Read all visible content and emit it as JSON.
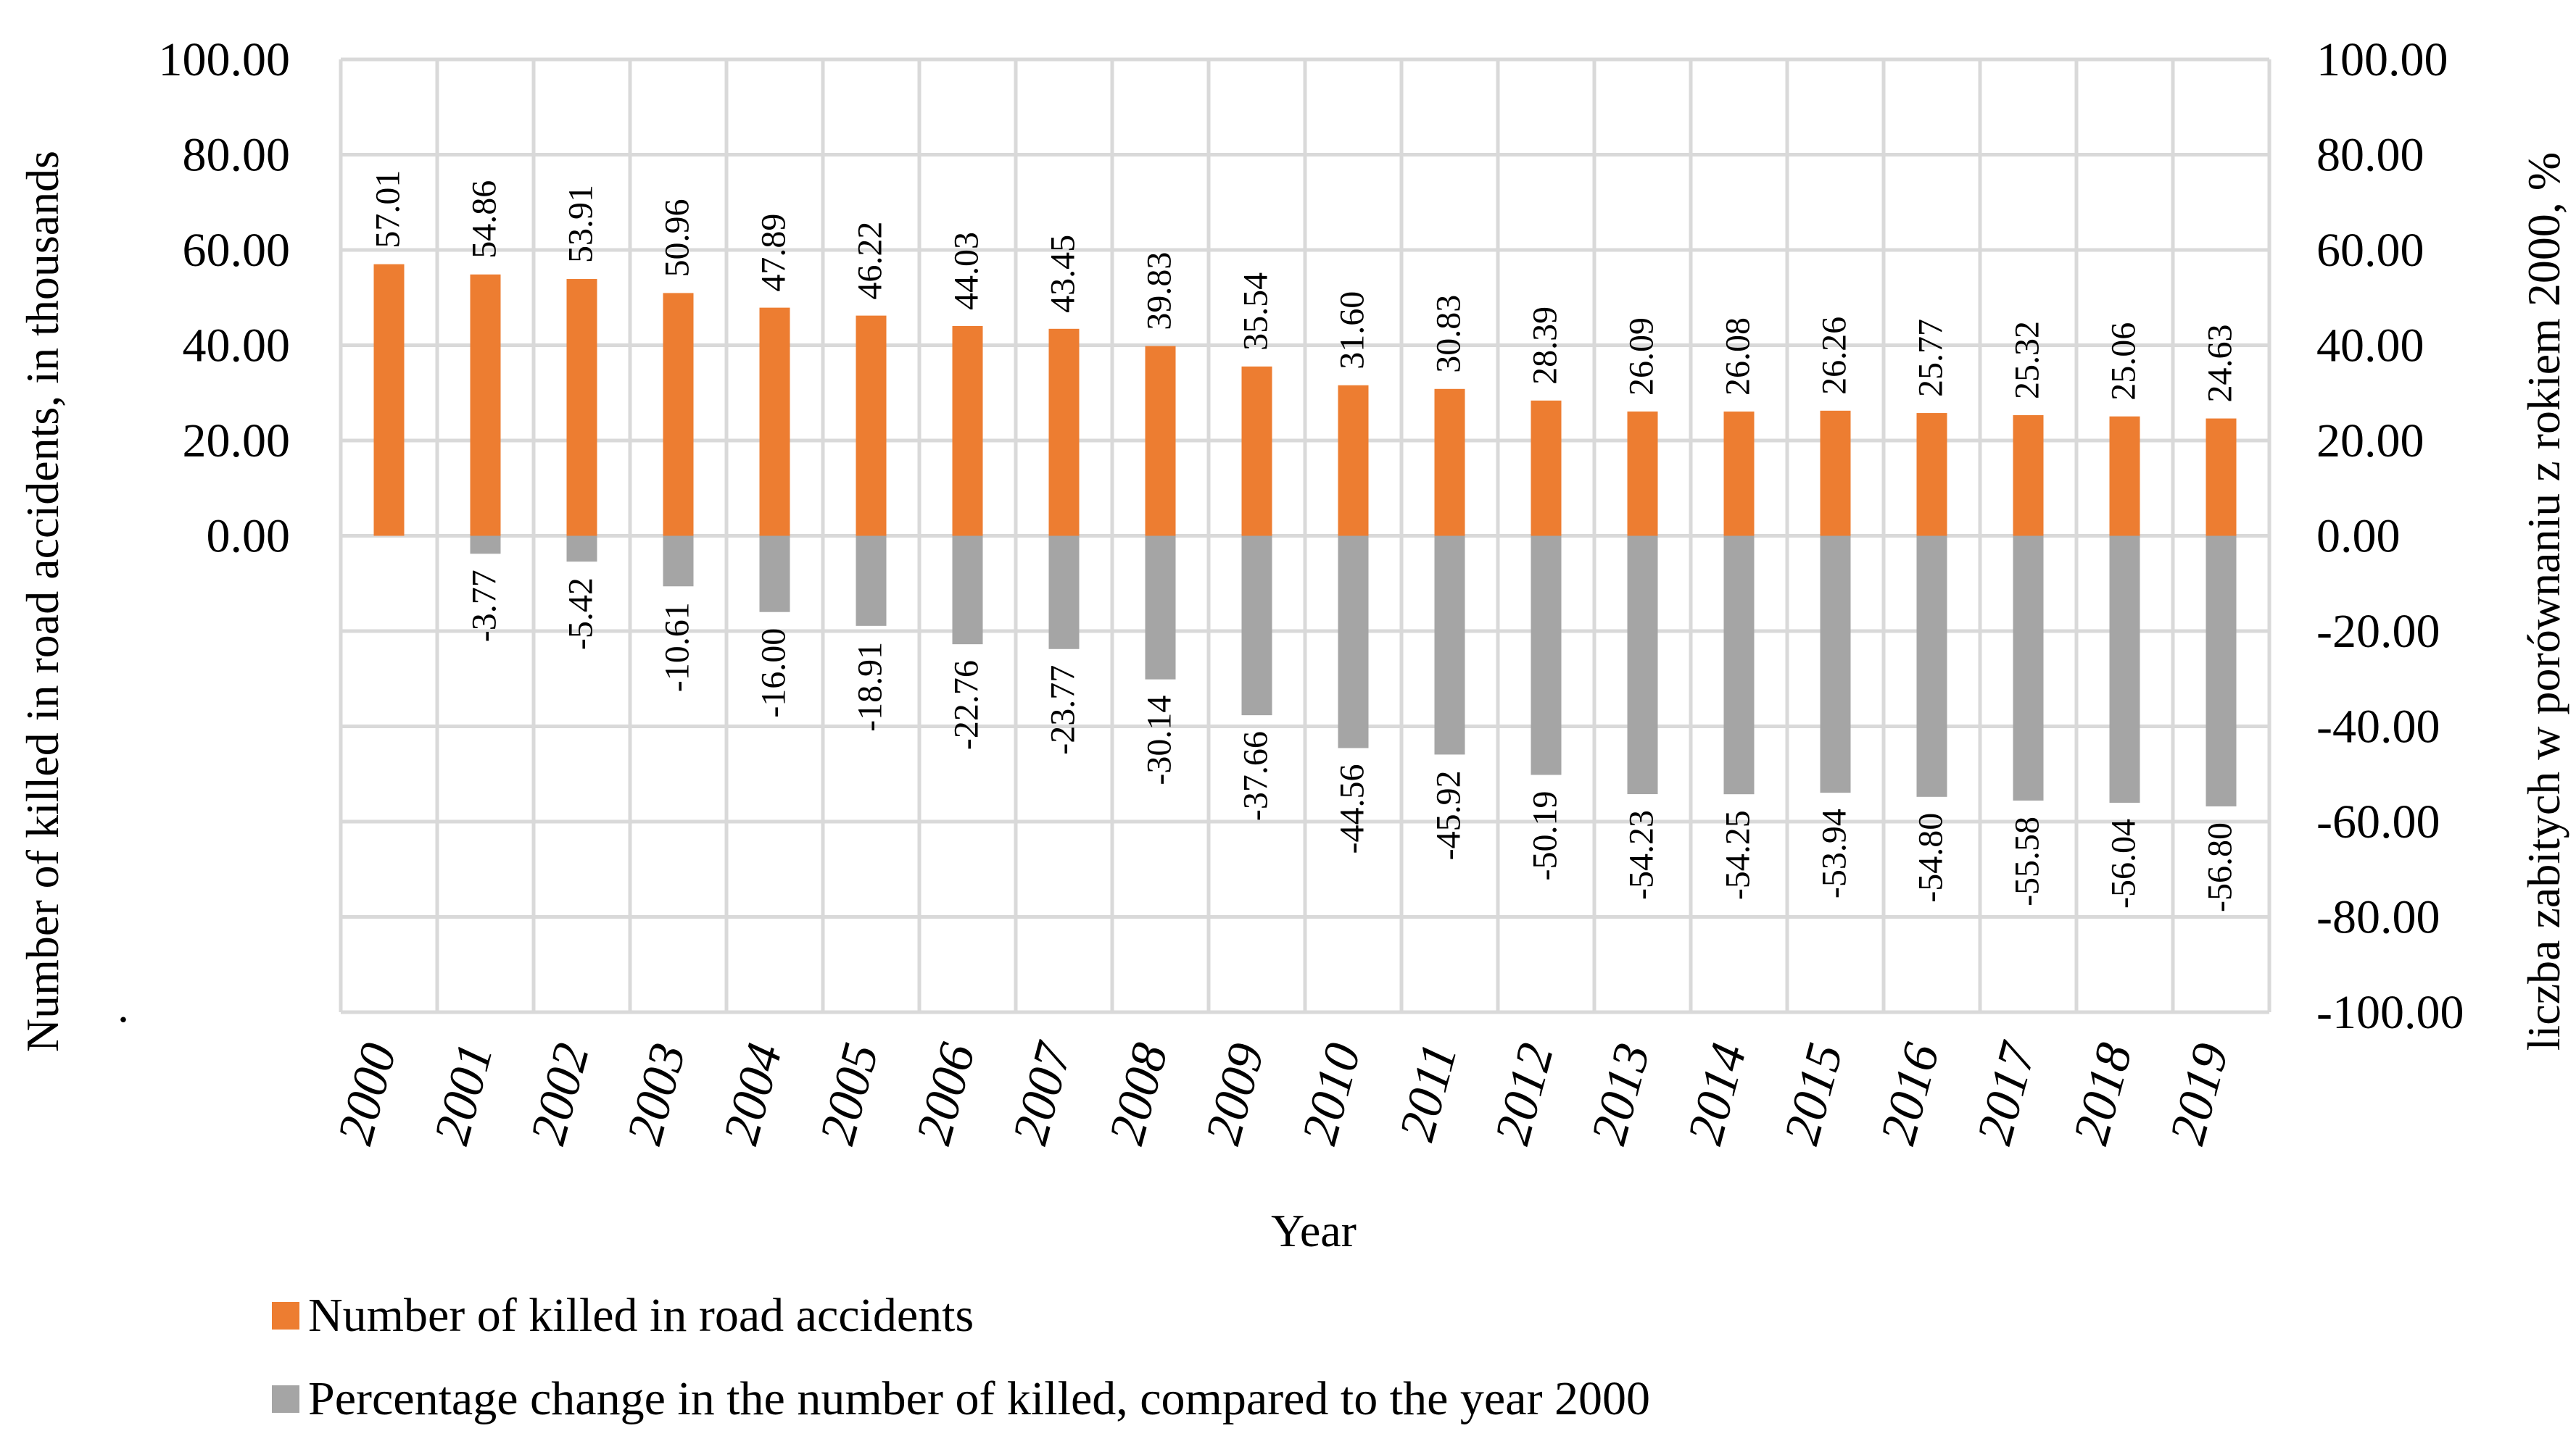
{
  "chart_data": {
    "type": "bar",
    "title": "",
    "xlabel": "Year",
    "ylabel": "Number of killed in road accidents, in thousands",
    "ylabel_right": "liczba zabitych w porównaniu z rokiem 2000, %",
    "ylim": [
      -100,
      100
    ],
    "y_ticks": [
      "100.00",
      "80.00",
      "60.00",
      "40.00",
      "20.00",
      "0.00",
      "",
      "",
      "",
      "",
      ""
    ],
    "y2_ticks": [
      "100.00",
      "80.00",
      "60.00",
      "40.00",
      "20.00",
      "0.00",
      "-20.00",
      "-40.00",
      "-60.00",
      "-80.00",
      "-100.00"
    ],
    "grid": true,
    "legend_position": "bottom",
    "stray_mark": ".",
    "categories": [
      "2000",
      "2001",
      "2002",
      "2003",
      "2004",
      "2005",
      "2006",
      "2007",
      "2008",
      "2009",
      "2010",
      "2011",
      "2012",
      "2013",
      "2014",
      "2015",
      "2016",
      "2017",
      "2018",
      "2019"
    ],
    "series": [
      {
        "name": "Number of killed in road accidents",
        "color": "#ed7d31",
        "values": [
          57.01,
          54.86,
          53.91,
          50.96,
          47.89,
          46.22,
          44.03,
          43.45,
          39.83,
          35.54,
          31.6,
          30.83,
          28.39,
          26.09,
          26.08,
          26.26,
          25.77,
          25.32,
          25.06,
          24.63
        ],
        "labels": [
          "57.01",
          "54.86",
          "53.91",
          "50.96",
          "47.89",
          "46.22",
          "44.03",
          "43.45",
          "39.83",
          "35.54",
          "31.60",
          "30.83",
          "28.39",
          "26.09",
          "26.08",
          "26.26",
          "25.77",
          "25.32",
          "25.06",
          "24.63"
        ]
      },
      {
        "name": "Percentage change in the number of killed, compared to the year 2000",
        "color": "#a5a5a5",
        "values": [
          0,
          -3.77,
          -5.42,
          -10.61,
          -16.0,
          -18.91,
          -22.76,
          -23.77,
          -30.14,
          -37.66,
          -44.56,
          -45.92,
          -50.19,
          -54.23,
          -54.25,
          -53.94,
          -54.8,
          -55.58,
          -56.04,
          -56.8
        ],
        "labels": [
          "",
          "-3.77",
          "-5.42",
          "-10.61",
          "-16.00",
          "-18.91",
          "-22.76",
          "-23.77",
          "-30.14",
          "-37.66",
          "-44.56",
          "-45.92",
          "-50.19",
          "-54.23",
          "-54.25",
          "-53.94",
          "-54.80",
          "-55.58",
          "-56.04",
          "-56.80"
        ]
      }
    ]
  }
}
